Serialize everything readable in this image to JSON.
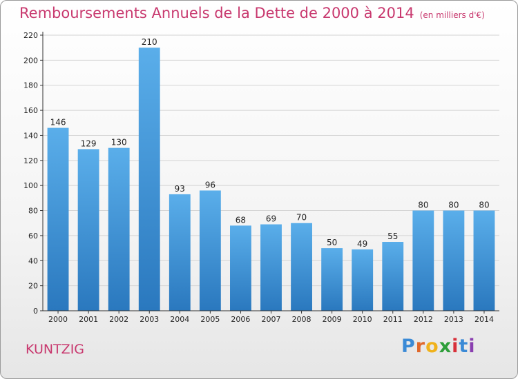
{
  "header": {
    "title": "Remboursements Annuels de la Dette de 2000 à 2014",
    "unit": "(en milliers d'€)"
  },
  "footer": {
    "commune": "KUNTZIG",
    "logo_letters": [
      "P",
      "r",
      "o",
      "x",
      "i",
      "t",
      "i"
    ],
    "logo_colors": [
      "#3a8ad6",
      "#e0682b",
      "#f0b21b",
      "#2e9e3a",
      "#d8303a",
      "#3a8ad6",
      "#8a3fb0"
    ]
  },
  "chart_data": {
    "type": "bar",
    "categories": [
      "2000",
      "2001",
      "2002",
      "2003",
      "2004",
      "2005",
      "2006",
      "2007",
      "2008",
      "2009",
      "2010",
      "2011",
      "2012",
      "2013",
      "2014"
    ],
    "values": [
      146,
      129,
      130,
      210,
      93,
      96,
      68,
      69,
      70,
      50,
      49,
      55,
      80,
      80,
      80
    ],
    "data_labels": [
      "146",
      "129",
      "130",
      "210",
      "93",
      "96",
      "68",
      "69",
      "70",
      "50",
      "49",
      "55",
      "80",
      "80",
      "80"
    ],
    "yticks": [
      "0",
      "20",
      "40",
      "60",
      "80",
      "100",
      "120",
      "140",
      "160",
      "180",
      "200",
      "220"
    ],
    "ylim": [
      0,
      220
    ],
    "xlabel": "",
    "ylabel": "",
    "grid": true,
    "bar_color_top": "#5aaeea",
    "bar_color_bottom": "#2a78be"
  }
}
